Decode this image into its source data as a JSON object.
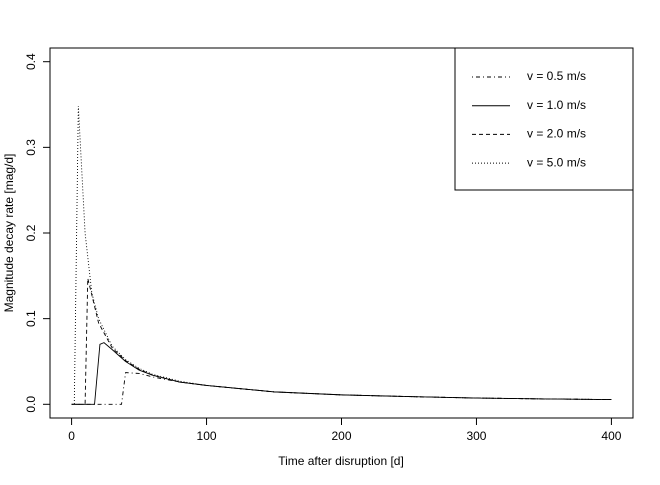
{
  "chart_data": {
    "type": "line",
    "xlabel": "Time after disruption [d]",
    "ylabel": "Magnitude decay rate [mag/d]",
    "xlim": [
      -16,
      416
    ],
    "ylim": [
      -0.016,
      0.416
    ],
    "xticks": [
      0,
      100,
      200,
      300,
      400
    ],
    "yticks": [
      {
        "value": 0,
        "label": "0.0"
      },
      0.1,
      0.2,
      0.3,
      0.4
    ],
    "legend_position": "top-right",
    "series": [
      {
        "name": "v = 0.5 m/s",
        "color": "#000000",
        "dash": "dotdash",
        "x": [
          0,
          37,
          40,
          50,
          60,
          80,
          100,
          150,
          200,
          250,
          300,
          350,
          400
        ],
        "values": [
          0,
          0,
          0.037,
          0.036,
          0.032,
          0.026,
          0.022,
          0.0145,
          0.011,
          0.009,
          0.0073,
          0.0063,
          0.0055
        ]
      },
      {
        "name": "v = 1.0 m/s",
        "color": "#000000",
        "dash": "solid",
        "x": [
          0,
          17,
          21,
          24,
          30,
          40,
          50,
          60,
          80,
          100,
          150,
          200,
          250,
          300,
          350,
          400
        ],
        "values": [
          0,
          0,
          0.07,
          0.072,
          0.064,
          0.05,
          0.04,
          0.034,
          0.026,
          0.022,
          0.0145,
          0.011,
          0.009,
          0.0073,
          0.0063,
          0.0055
        ]
      },
      {
        "name": "v = 2.0 m/s",
        "color": "#000000",
        "dash": "dashed",
        "x": [
          0,
          10,
          12,
          20,
          30,
          40,
          50,
          60,
          80,
          100,
          150,
          200,
          250,
          300,
          350,
          400
        ],
        "values": [
          0,
          0,
          0.147,
          0.095,
          0.066,
          0.051,
          0.041,
          0.034,
          0.026,
          0.022,
          0.0145,
          0.011,
          0.009,
          0.0073,
          0.0063,
          0.0055
        ]
      },
      {
        "name": "v = 5.0 m/s",
        "color": "#000000",
        "dash": "dotted",
        "x": [
          0,
          2,
          5,
          10,
          15,
          20,
          30,
          40,
          50,
          60,
          80,
          100,
          150,
          200,
          250,
          300,
          350,
          400
        ],
        "values": [
          0,
          0,
          0.348,
          0.2,
          0.13,
          0.1,
          0.068,
          0.052,
          0.042,
          0.035,
          0.027,
          0.022,
          0.0145,
          0.011,
          0.009,
          0.0073,
          0.0063,
          0.0055
        ]
      }
    ]
  }
}
